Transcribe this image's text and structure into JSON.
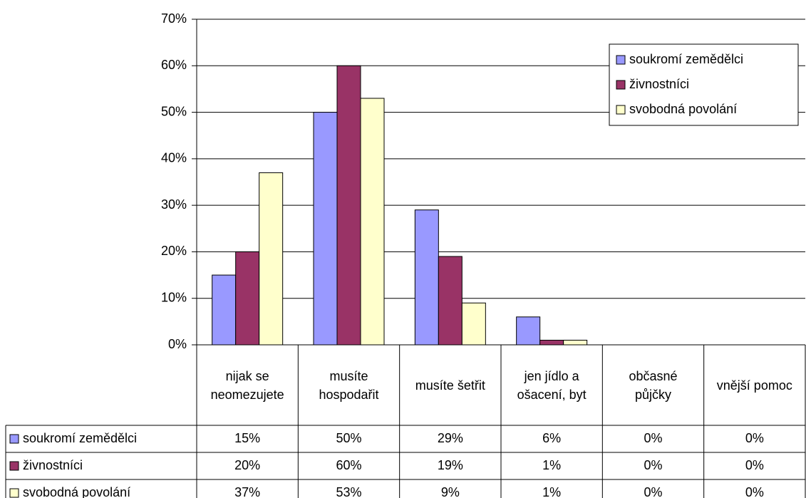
{
  "chart_data": {
    "type": "bar",
    "categories": [
      "nijak se neomezujete",
      "musíte hospodařit",
      "musíte šetřit",
      "jen jídlo a ošacení, byt",
      "občasné půjčky",
      "vnější pomoc"
    ],
    "series": [
      {
        "name": "soukromí zemědělci",
        "color": "#9999ff",
        "values": [
          15,
          50,
          29,
          6,
          0,
          0
        ],
        "value_labels": [
          "15%",
          "50%",
          "29%",
          "6%",
          "0%",
          "0%"
        ]
      },
      {
        "name": "živnostníci",
        "color": "#993366",
        "values": [
          20,
          60,
          19,
          1,
          0,
          0
        ],
        "value_labels": [
          "20%",
          "60%",
          "19%",
          "1%",
          "0%",
          "0%"
        ]
      },
      {
        "name": "svobodná povolání",
        "color": "#ffffcc",
        "values": [
          37,
          53,
          9,
          1,
          0,
          0
        ],
        "value_labels": [
          "37%",
          "53%",
          "9%",
          "1%",
          "0%",
          "0%"
        ]
      }
    ],
    "ylim": [
      0,
      70
    ],
    "yticks": [
      {
        "value": 0,
        "label": "0%"
      },
      {
        "value": 10,
        "label": "10%"
      },
      {
        "value": 20,
        "label": "20%"
      },
      {
        "value": 30,
        "label": "30%"
      },
      {
        "value": 40,
        "label": "40%"
      },
      {
        "value": 50,
        "label": "50%"
      },
      {
        "value": 60,
        "label": "60%"
      },
      {
        "value": 70,
        "label": "70%"
      }
    ],
    "grid": true,
    "legend": "upper right"
  }
}
